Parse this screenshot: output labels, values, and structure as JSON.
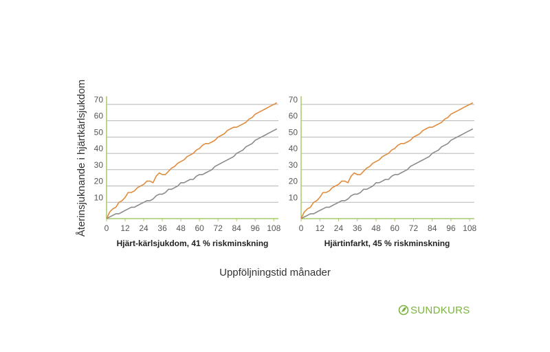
{
  "figure": {
    "ylabel": "Återinsjuknande i hjärtkärlsjukdom",
    "xlabel": "Uppföljningstid månader",
    "brand": "SUNDKURS"
  },
  "colors": {
    "treatment_series": "#e08a3c",
    "control_series": "#8a8a8a",
    "axis": "#a6cc6a",
    "grid": "#b5b5b5",
    "brand": "#7ab43c"
  },
  "chart_data": [
    {
      "type": "line",
      "title": "Hjärt-kärlsjukdom, 41 % riskminskning",
      "xlabel": "",
      "ylabel": "Återinsjuknande i hjärtkärlsjukdom",
      "xticks": [
        0,
        12,
        24,
        36,
        48,
        60,
        72,
        84,
        96,
        108
      ],
      "yticks": [
        10,
        20,
        30,
        40,
        50,
        60,
        70
      ],
      "xlim": [
        0,
        111
      ],
      "ylim": [
        0,
        75
      ],
      "grid": true,
      "series": [
        {
          "color": "orange",
          "x": [
            0,
            2,
            4,
            6,
            8,
            10,
            12,
            14,
            16,
            18,
            20,
            22,
            24,
            26,
            28,
            30,
            32,
            34,
            36,
            38,
            40,
            42,
            44,
            46,
            48,
            50,
            52,
            54,
            56,
            58,
            60,
            62,
            64,
            66,
            68,
            70,
            72,
            74,
            76,
            78,
            80,
            82,
            84,
            86,
            88,
            90,
            92,
            94,
            96,
            98,
            100,
            102,
            104,
            106,
            108,
            110
          ],
          "y": [
            0,
            4,
            6,
            7,
            10,
            11,
            13,
            16,
            16,
            17,
            19,
            20,
            21,
            23,
            23,
            22,
            26,
            28,
            27,
            27,
            29,
            31,
            32,
            34,
            35,
            36,
            38,
            39,
            40,
            42,
            43,
            45,
            46,
            46,
            47,
            48,
            50,
            51,
            52,
            54,
            55,
            56,
            56,
            57,
            58,
            59,
            61,
            62,
            64,
            65,
            66,
            67,
            68,
            69,
            70,
            71
          ]
        },
        {
          "color": "gray",
          "x": [
            0,
            2,
            4,
            6,
            8,
            10,
            12,
            14,
            16,
            18,
            20,
            22,
            24,
            26,
            28,
            30,
            32,
            34,
            36,
            38,
            40,
            42,
            44,
            46,
            48,
            50,
            52,
            54,
            56,
            58,
            60,
            62,
            64,
            66,
            68,
            70,
            72,
            74,
            76,
            78,
            80,
            82,
            84,
            86,
            88,
            90,
            92,
            94,
            96,
            98,
            100,
            102,
            104,
            106,
            108,
            110
          ],
          "y": [
            0,
            1,
            2,
            3,
            3,
            4,
            5,
            6,
            7,
            7,
            8,
            9,
            10,
            11,
            11,
            12,
            14,
            15,
            15,
            16,
            18,
            18,
            19,
            20,
            22,
            22,
            23,
            24,
            24,
            26,
            27,
            27,
            28,
            29,
            30,
            32,
            33,
            34,
            35,
            36,
            37,
            38,
            40,
            41,
            42,
            44,
            45,
            46,
            48,
            49,
            50,
            51,
            52,
            53,
            54,
            55
          ]
        }
      ]
    },
    {
      "type": "line",
      "title": "Hjärtinfarkt, 45 % riskminskning",
      "xlabel": "",
      "ylabel": "",
      "xticks": [
        0,
        12,
        24,
        36,
        48,
        60,
        72,
        84,
        96,
        108
      ],
      "yticks": [
        10,
        20,
        30,
        40,
        50,
        60,
        70
      ],
      "xlim": [
        0,
        111
      ],
      "ylim": [
        0,
        75
      ],
      "grid": true,
      "series": [
        {
          "color": "orange",
          "x": [
            0,
            2,
            4,
            6,
            8,
            10,
            12,
            14,
            16,
            18,
            20,
            22,
            24,
            26,
            28,
            30,
            32,
            34,
            36,
            38,
            40,
            42,
            44,
            46,
            48,
            50,
            52,
            54,
            56,
            58,
            60,
            62,
            64,
            66,
            68,
            70,
            72,
            74,
            76,
            78,
            80,
            82,
            84,
            86,
            88,
            90,
            92,
            94,
            96,
            98,
            100,
            102,
            104,
            106,
            108,
            110
          ],
          "y": [
            0,
            4,
            6,
            7,
            10,
            11,
            13,
            16,
            16,
            17,
            19,
            20,
            21,
            23,
            23,
            22,
            26,
            28,
            27,
            27,
            29,
            31,
            32,
            34,
            35,
            36,
            38,
            39,
            40,
            42,
            43,
            45,
            46,
            46,
            47,
            48,
            50,
            51,
            52,
            54,
            55,
            56,
            56,
            57,
            58,
            59,
            61,
            62,
            64,
            65,
            66,
            67,
            68,
            69,
            70,
            71
          ]
        },
        {
          "color": "gray",
          "x": [
            0,
            2,
            4,
            6,
            8,
            10,
            12,
            14,
            16,
            18,
            20,
            22,
            24,
            26,
            28,
            30,
            32,
            34,
            36,
            38,
            40,
            42,
            44,
            46,
            48,
            50,
            52,
            54,
            56,
            58,
            60,
            62,
            64,
            66,
            68,
            70,
            72,
            74,
            76,
            78,
            80,
            82,
            84,
            86,
            88,
            90,
            92,
            94,
            96,
            98,
            100,
            102,
            104,
            106,
            108,
            110
          ],
          "y": [
            0,
            1,
            2,
            3,
            3,
            4,
            5,
            6,
            7,
            7,
            8,
            9,
            10,
            11,
            11,
            12,
            14,
            15,
            15,
            16,
            18,
            18,
            19,
            20,
            22,
            22,
            23,
            24,
            24,
            26,
            27,
            27,
            28,
            29,
            30,
            32,
            33,
            34,
            35,
            36,
            37,
            38,
            40,
            41,
            42,
            44,
            45,
            46,
            48,
            49,
            50,
            51,
            52,
            53,
            54,
            55
          ]
        }
      ]
    }
  ]
}
